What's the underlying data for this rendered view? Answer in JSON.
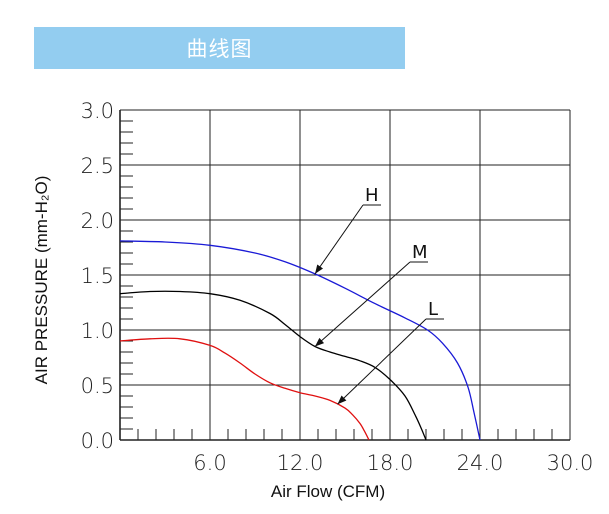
{
  "banner": {
    "title": "曲线图",
    "color": "#93cdf0"
  },
  "chart_data": {
    "type": "line",
    "xlabel": "Air Flow (CFM)",
    "ylabel": "AIR PRESSURE (mm-H₂O)",
    "xlim": [
      0,
      30
    ],
    "ylim": [
      0,
      3.0
    ],
    "x_ticks": [
      "6.0",
      "12.0",
      "18.0",
      "24.0",
      "30.0"
    ],
    "y_ticks": [
      "0.0",
      "0.5",
      "1.0",
      "1.5",
      "2.0",
      "2.5",
      "3.0"
    ],
    "grid": true,
    "series": [
      {
        "name": "H",
        "color": "#1a1ad6",
        "x": [
          0,
          3,
          6,
          9,
          11,
          13,
          15,
          17,
          19,
          20.5,
          21.5,
          22.5,
          23.2,
          23.6,
          24.0
        ],
        "y": [
          1.81,
          1.8,
          1.77,
          1.7,
          1.62,
          1.51,
          1.38,
          1.24,
          1.11,
          1.0,
          0.88,
          0.7,
          0.48,
          0.25,
          0.0
        ]
      },
      {
        "name": "M",
        "color": "#000000",
        "x": [
          0,
          2,
          4,
          6,
          8,
          10,
          11,
          12,
          13,
          14,
          15,
          16,
          17,
          18,
          19,
          19.7,
          20.1,
          20.4
        ],
        "y": [
          1.33,
          1.35,
          1.35,
          1.33,
          1.27,
          1.15,
          1.05,
          0.94,
          0.85,
          0.8,
          0.76,
          0.72,
          0.66,
          0.55,
          0.4,
          0.22,
          0.1,
          0.0
        ]
      },
      {
        "name": "L",
        "color": "#e01010",
        "x": [
          0,
          2,
          4,
          6,
          7,
          8,
          9,
          10,
          11,
          12,
          13,
          14,
          15,
          15.5,
          16.0,
          16.3,
          16.6
        ],
        "y": [
          0.9,
          0.92,
          0.92,
          0.86,
          0.79,
          0.7,
          0.6,
          0.52,
          0.47,
          0.43,
          0.4,
          0.36,
          0.29,
          0.23,
          0.15,
          0.08,
          0.0
        ]
      }
    ],
    "annotations": [
      {
        "text": "H",
        "series": "H",
        "at_x": 13.0
      },
      {
        "text": "M",
        "series": "M",
        "at_x": 13.0
      },
      {
        "text": "L",
        "series": "L",
        "at_x": 14.5
      }
    ]
  }
}
